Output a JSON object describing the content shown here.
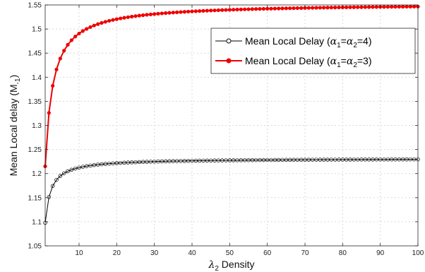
{
  "chart_data": {
    "type": "line",
    "xlabel_symbol": "λ",
    "xlabel_sub": "2",
    "xlabel_text": " Density",
    "ylabel_main": "Mean Local delay (M",
    "ylabel_sub": "-1",
    "ylabel_close": ")",
    "xlim": [
      1,
      100
    ],
    "ylim": [
      1.05,
      1.55
    ],
    "xticks": [
      10,
      20,
      30,
      40,
      50,
      60,
      70,
      80,
      90,
      100
    ],
    "yticks": [
      1.05,
      1.1,
      1.15,
      1.2,
      1.25,
      1.3,
      1.35,
      1.4,
      1.45,
      1.5,
      1.55
    ],
    "ytick_labels": [
      "1.05",
      "1.1",
      "1.15",
      "1.2",
      "1.25",
      "1.3",
      "1.35",
      "1.4",
      "1.45",
      "1.5",
      "1.55"
    ],
    "grid": true,
    "legend_position": "top-right",
    "series": [
      {
        "name": "Mean Local Delay (α1=α2=4)",
        "legend_prefix": "Mean Local Delay (",
        "legend_alpha": "α",
        "legend_sub1": "1",
        "legend_eq1": "=",
        "legend_sub2": "2",
        "legend_eq2": "=4)",
        "color": "#000000",
        "marker": "open-circle",
        "model": {
          "start": 1.098,
          "limit": 1.2315,
          "k": 1.5
        }
      },
      {
        "name": "Mean Local Delay (α1=α2=3)",
        "legend_prefix": "Mean Local Delay (",
        "legend_alpha": "α",
        "legend_sub1": "1",
        "legend_eq1": "=",
        "legend_sub2": "2",
        "legend_eq2": "=3)",
        "color": "#ee0000",
        "marker": "filled-circle",
        "model": {
          "start": 1.215,
          "limit": 1.5535,
          "k": 2.05
        }
      }
    ]
  }
}
